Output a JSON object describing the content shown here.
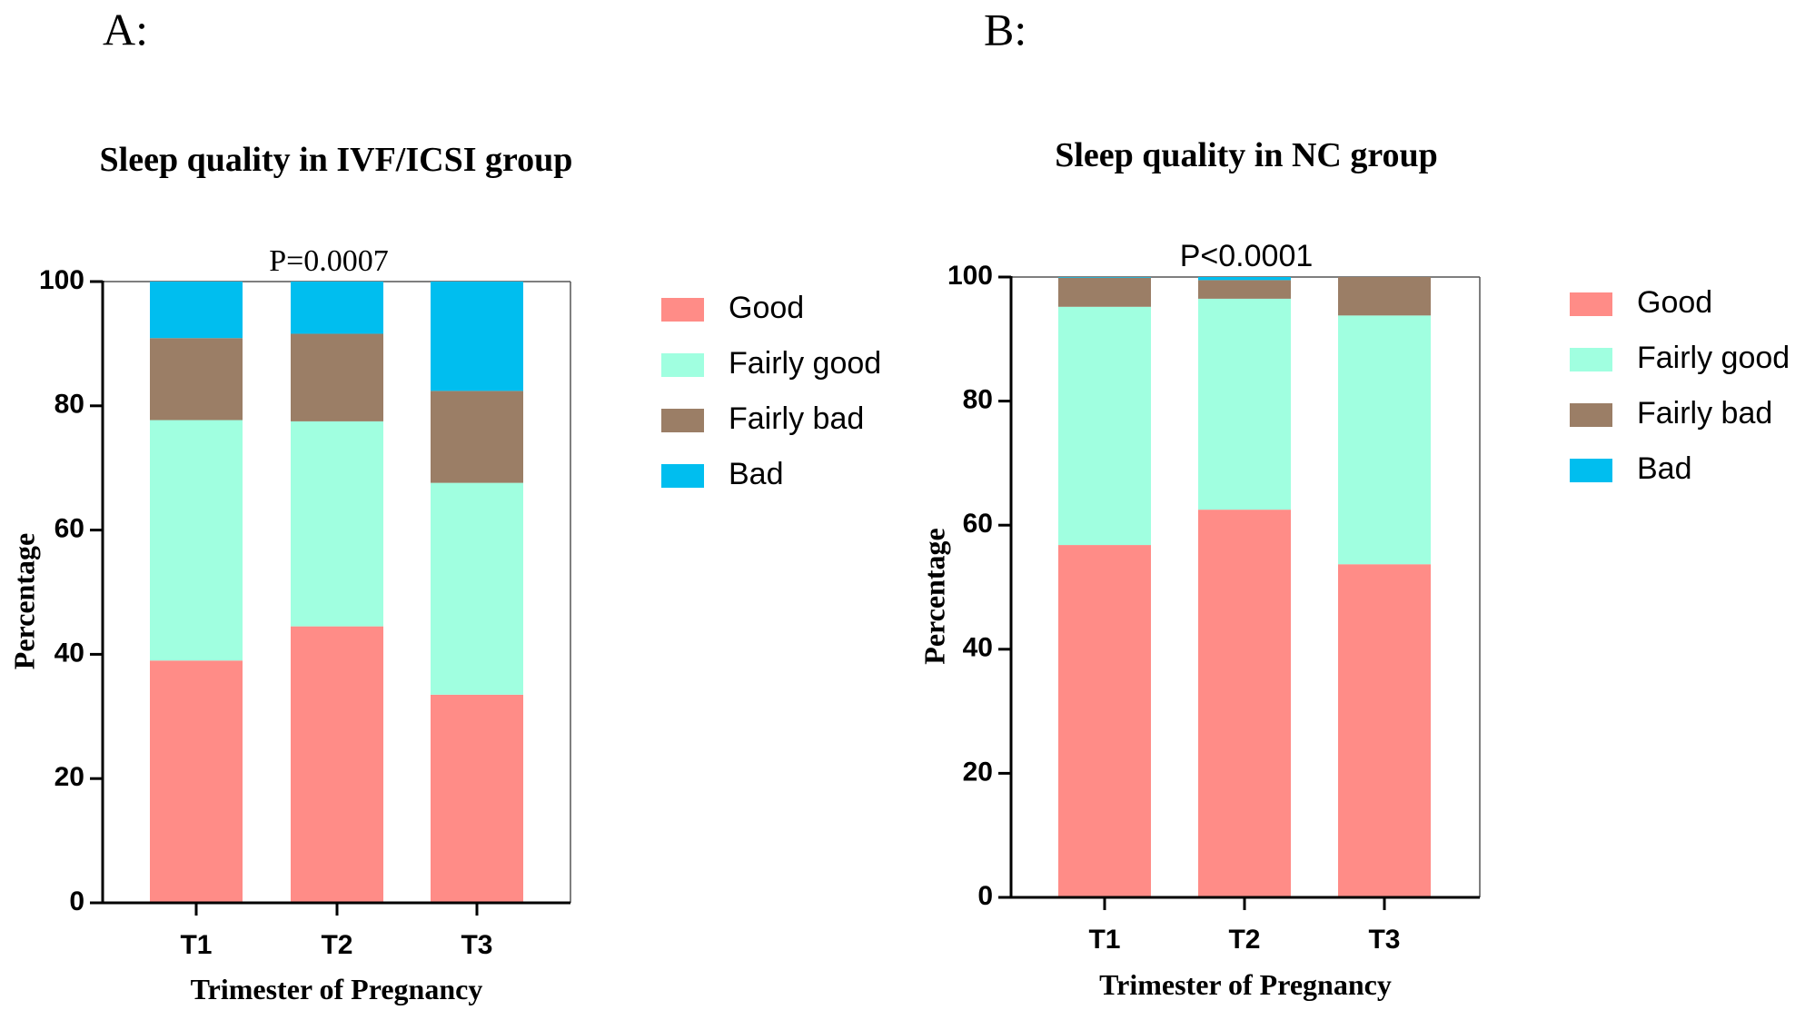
{
  "chart_data": [
    {
      "type": "bar",
      "stacked": true,
      "panel_label": "A:",
      "title": "Sleep quality in IVF/ICSI group",
      "annotation": "P=0.0007",
      "xlabel": "Trimester of Pregnancy",
      "ylabel": "Percentage",
      "ylim": [
        0,
        100
      ],
      "yticks": [
        "0",
        "20",
        "40",
        "60",
        "80",
        "100"
      ],
      "categories": [
        "T1",
        "T2",
        "T3"
      ],
      "legend_position": "right",
      "series": [
        {
          "name": "Good",
          "color": "#FF8C87",
          "values": [
            39.0,
            44.5,
            33.5
          ]
        },
        {
          "name": "Fairly good",
          "color": "#A0FFE0",
          "values": [
            38.7,
            33.0,
            34.1
          ]
        },
        {
          "name": "Fairly bad",
          "color": "#9B7E66",
          "values": [
            13.2,
            14.1,
            14.8
          ]
        },
        {
          "name": "Bad",
          "color": "#00BEEF",
          "values": [
            9.1,
            8.4,
            17.6
          ]
        }
      ]
    },
    {
      "type": "bar",
      "stacked": true,
      "panel_label": "B:",
      "title": "Sleep quality in NC group",
      "annotation": "P<0.0001",
      "xlabel": "Trimester of Pregnancy",
      "ylabel": "Percentage",
      "ylim": [
        0,
        100
      ],
      "yticks": [
        "0",
        "20",
        "40",
        "60",
        "80",
        "100"
      ],
      "categories": [
        "T1",
        "T2",
        "T3"
      ],
      "legend_position": "right",
      "series": [
        {
          "name": "Good",
          "color": "#FF8C87",
          "values": [
            56.8,
            62.5,
            53.7
          ]
        },
        {
          "name": "Fairly good",
          "color": "#A0FFE0",
          "values": [
            38.4,
            34.0,
            40.1
          ]
        },
        {
          "name": "Fairly bad",
          "color": "#9B7E66",
          "values": [
            4.7,
            3.0,
            6.2
          ]
        },
        {
          "name": "Bad",
          "color": "#00BEEF",
          "values": [
            0.1,
            0.5,
            0.0
          ]
        }
      ]
    }
  ]
}
